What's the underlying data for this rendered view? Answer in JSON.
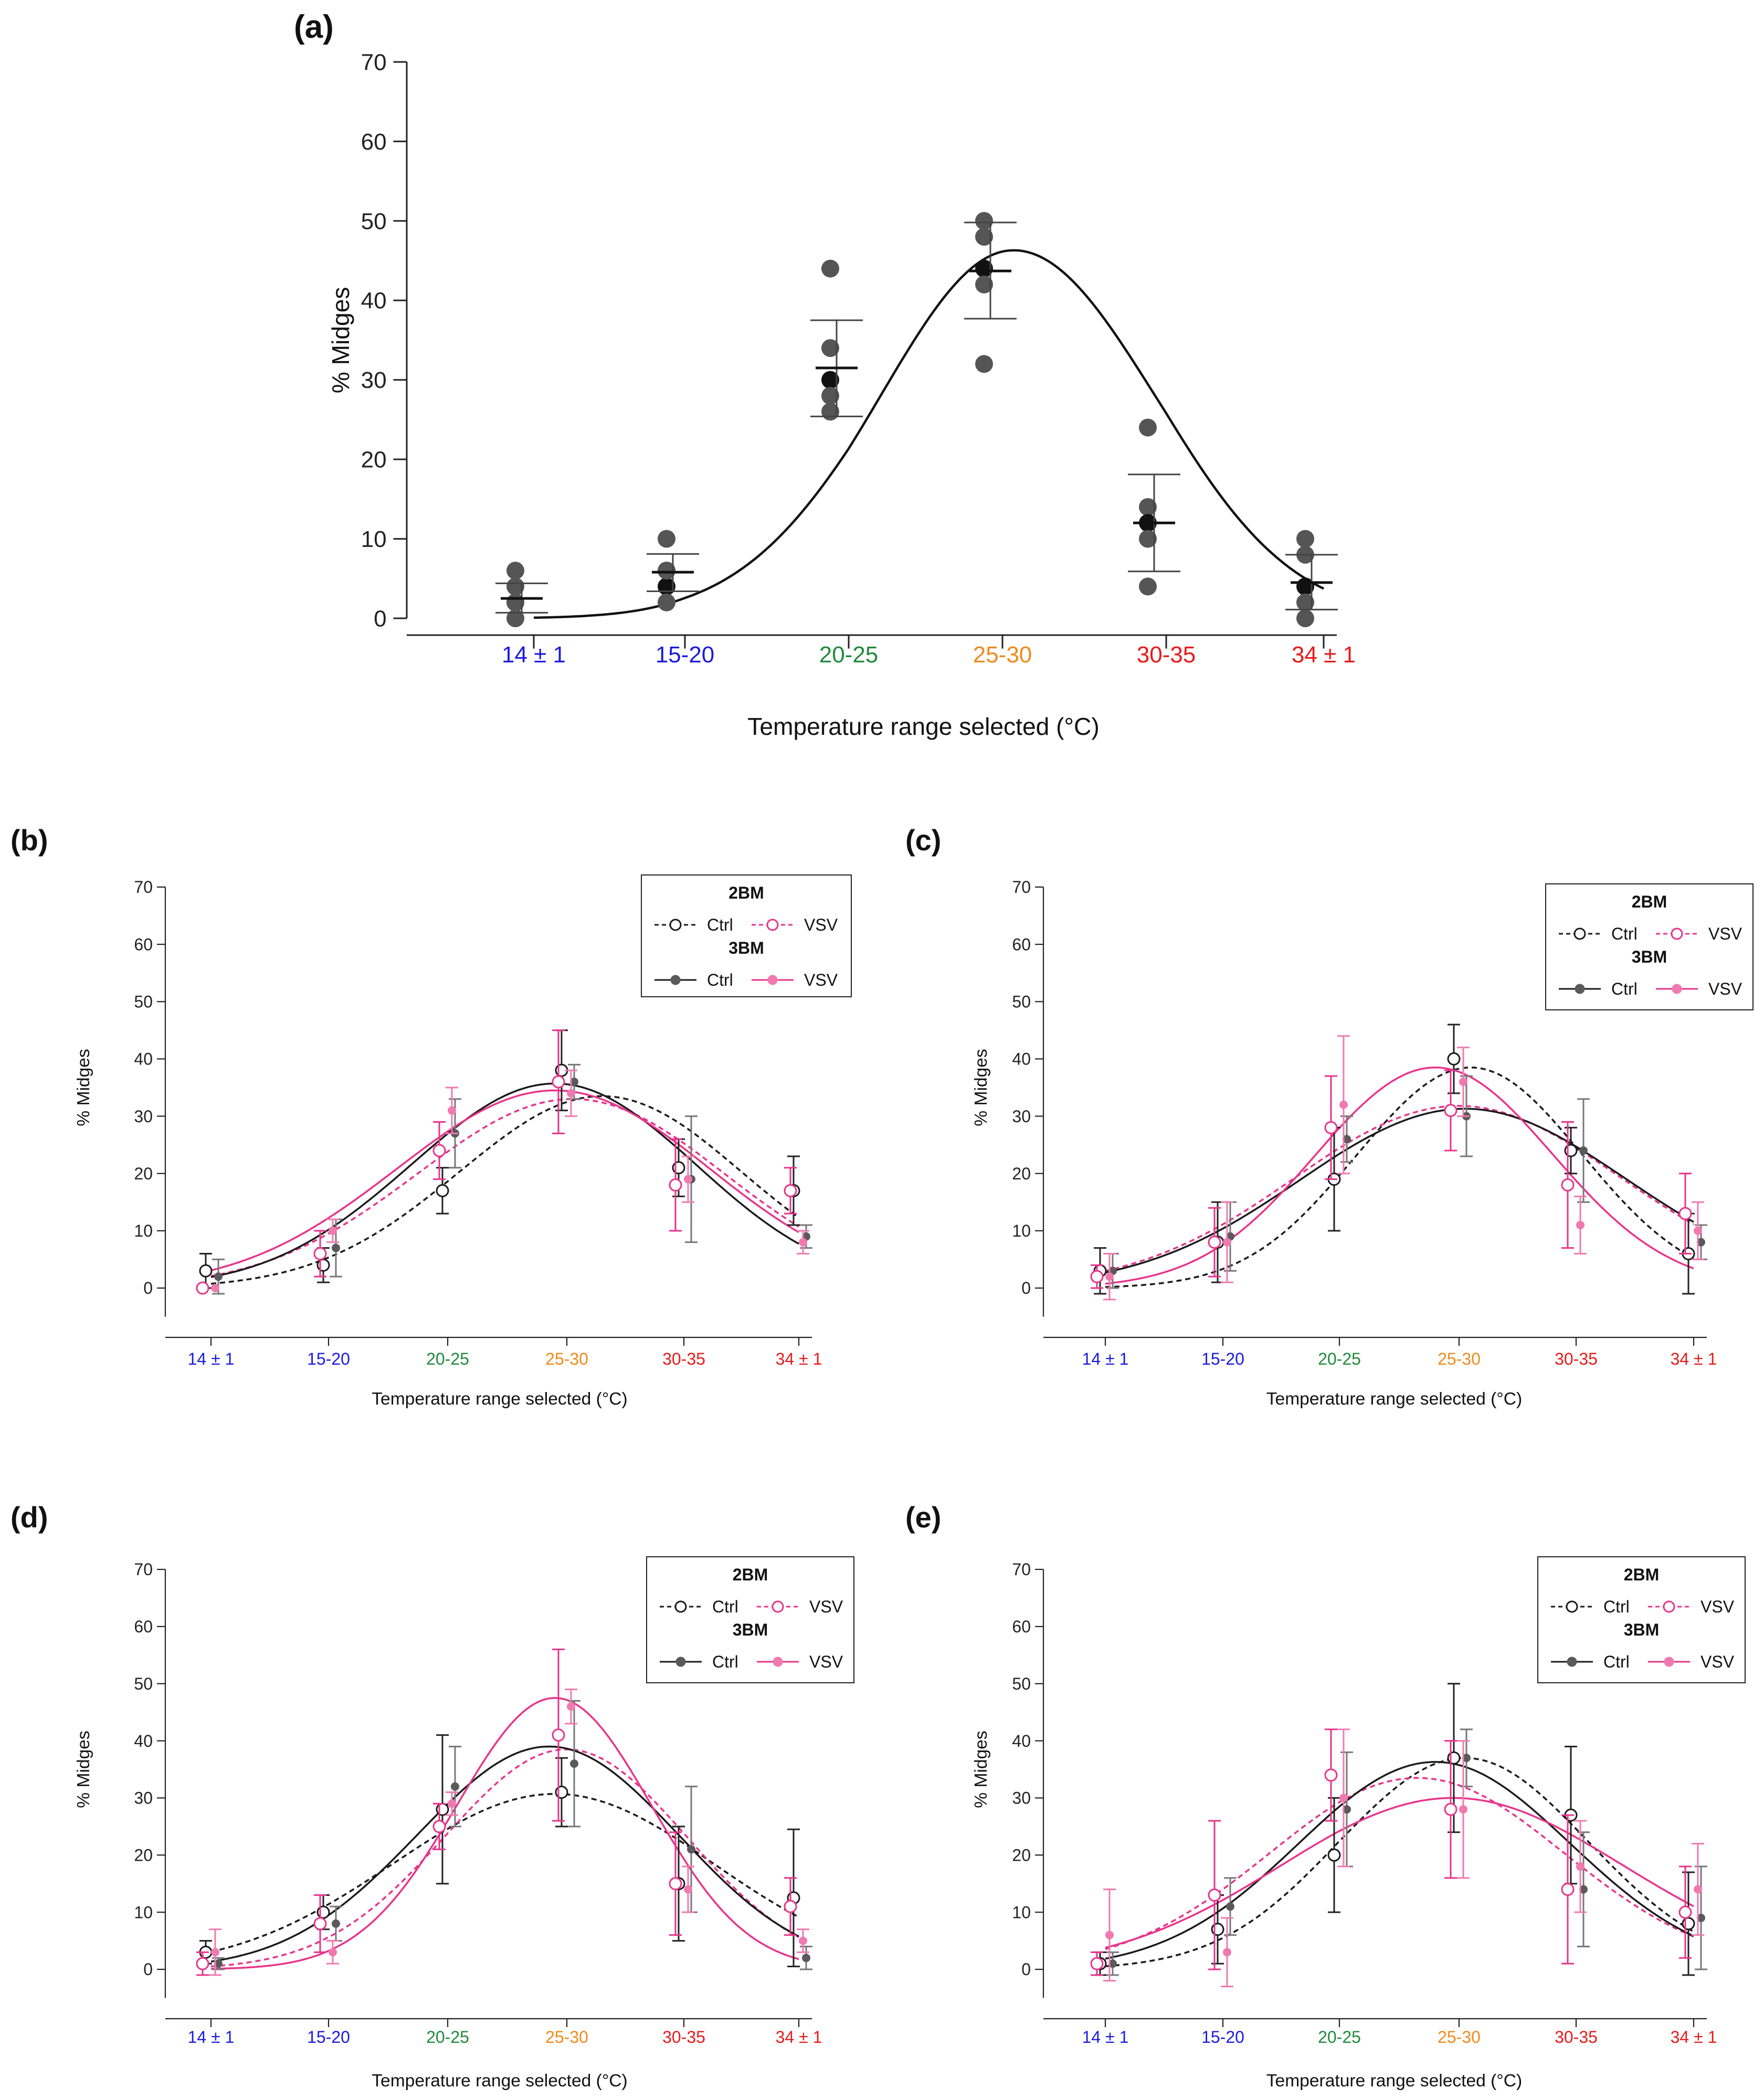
{
  "figure": {
    "panels": [
      "(a)",
      "(b)",
      "(c)",
      "(d)",
      "(e)"
    ]
  },
  "colors": {
    "ctrl": "#1a1a1a",
    "vsv": "#e8338a",
    "vsv_light": "#f07ab0",
    "ctrl_grey": "#5a5a5a",
    "tick_colors": [
      "#1a1adf",
      "#1a1adf",
      "#1f8a3a",
      "#f08a1a",
      "#e81a1a",
      "#e81a1a"
    ]
  },
  "chart_data": [
    {
      "panel": "(a)",
      "type": "scatter",
      "title": "(a)",
      "xlabel": "Temperature range selected (°C)",
      "ylabel": "% Midges",
      "categories": [
        "14 ± 1",
        "15-20",
        "20-25",
        "25-30",
        "30-35",
        "34 ± 1"
      ],
      "ylim": [
        0,
        70
      ],
      "yticks": [
        0,
        10,
        20,
        30,
        40,
        50,
        60,
        70
      ],
      "points": [
        [
          6,
          4,
          2,
          0,
          2
        ],
        [
          10,
          6,
          4,
          2,
          6
        ],
        [
          44,
          34,
          30,
          28,
          26
        ],
        [
          50,
          48,
          44,
          42,
          32
        ],
        [
          24,
          14,
          12,
          10,
          4
        ],
        [
          10,
          8,
          4,
          2,
          0
        ]
      ],
      "mean": [
        2.5,
        5.8,
        31.5,
        43.7,
        12,
        4.5
      ],
      "err_low": [
        0.7,
        3.4,
        25.4,
        37.7,
        5.9,
        1.1
      ],
      "err_high": [
        4.4,
        8.1,
        37.5,
        49.8,
        18.1,
        8
      ],
      "fit": {
        "amplitude": 46.3,
        "center": 3.07,
        "sigma": 0.86
      }
    },
    {
      "panel": "(b)",
      "type": "line",
      "title": "(b)",
      "xlabel": "Temperature range selected (°C)",
      "ylabel": "% Midges",
      "categories": [
        "14 ± 1",
        "15-20",
        "20-25",
        "25-30",
        "30-35",
        "34 ± 1"
      ],
      "ylim": [
        -5,
        70
      ],
      "yticks": [
        0,
        10,
        20,
        30,
        40,
        50,
        60,
        70
      ],
      "legend": {
        "group1": "2BM",
        "group2": "3BM",
        "ctrl": "Ctrl",
        "vsv": "VSV",
        "position": "top-right"
      },
      "series": [
        {
          "name": "2BM Ctrl",
          "values": [
            3,
            4,
            17,
            38,
            21,
            17
          ],
          "err": [
            3,
            3,
            4,
            7,
            5,
            6
          ],
          "fit": {
            "amplitude": 33.5,
            "center": 3.3,
            "sigma": 1.2
          }
        },
        {
          "name": "2BM VSV",
          "values": [
            0,
            6,
            24,
            36,
            18,
            17
          ],
          "err": [
            0,
            4,
            5,
            9,
            8,
            4
          ],
          "fit": {
            "amplitude": 33,
            "center": 3.05,
            "sigma": 1.3
          }
        },
        {
          "name": "3BM Ctrl",
          "values": [
            2,
            7,
            27,
            36,
            19,
            9
          ],
          "err": [
            3,
            5,
            6,
            3,
            11,
            2
          ],
          "fit": {
            "amplitude": 35.7,
            "center": 2.9,
            "sigma": 1.2
          }
        },
        {
          "name": "3BM VSV",
          "values": [
            0,
            10,
            31,
            34,
            19,
            8
          ],
          "err": [
            0,
            2,
            4,
            4,
            4,
            2
          ],
          "fit": {
            "amplitude": 34.5,
            "center": 2.9,
            "sigma": 1.32
          }
        }
      ]
    },
    {
      "panel": "(c)",
      "type": "line",
      "title": "(c)",
      "xlabel": "Temperature range selected (°C)",
      "ylabel": "% Midges",
      "categories": [
        "14 ± 1",
        "15-20",
        "20-25",
        "25-30",
        "30-35",
        "34 ± 1"
      ],
      "ylim": [
        -5,
        70
      ],
      "yticks": [
        0,
        10,
        20,
        30,
        40,
        50,
        60,
        70
      ],
      "legend": {
        "group1": "2BM",
        "group2": "3BM",
        "ctrl": "Ctrl",
        "vsv": "VSV",
        "position": "top-right"
      },
      "series": [
        {
          "name": "2BM Ctrl",
          "values": [
            3,
            8,
            19,
            40,
            24,
            6
          ],
          "err": [
            4,
            7,
            9,
            6,
            4,
            7
          ],
          "fit": {
            "amplitude": 38.5,
            "center": 3.1,
            "sigma": 0.95
          }
        },
        {
          "name": "2BM VSV",
          "values": [
            2,
            8,
            28,
            31,
            18,
            13
          ],
          "err": [
            2,
            6,
            9,
            7,
            11,
            7
          ],
          "fit": {
            "amplitude": 31.8,
            "center": 3.0,
            "sigma": 1.38
          }
        },
        {
          "name": "3BM Ctrl",
          "values": [
            3,
            9,
            26,
            30,
            24,
            8
          ],
          "err": [
            3,
            6,
            4,
            7,
            9,
            3
          ],
          "fit": {
            "amplitude": 31.3,
            "center": 3.05,
            "sigma": 1.38
          }
        },
        {
          "name": "3BM VSV",
          "values": [
            2,
            8,
            32,
            36,
            11,
            10
          ],
          "err": [
            4,
            7,
            12,
            6,
            5,
            5
          ],
          "fit": {
            "amplitude": 38.5,
            "center": 2.8,
            "sigma": 1.0
          }
        }
      ]
    },
    {
      "panel": "(d)",
      "type": "line",
      "title": "(d)",
      "xlabel": "Temperature range selected (°C)",
      "ylabel": "% Midges",
      "categories": [
        "14 ± 1",
        "15-20",
        "20-25",
        "25-30",
        "30-35",
        "34 ± 1"
      ],
      "ylim": [
        -5,
        70
      ],
      "yticks": [
        0,
        10,
        20,
        30,
        40,
        50,
        60,
        70
      ],
      "legend": {
        "group1": "2BM",
        "group2": "3BM",
        "ctrl": "Ctrl",
        "vsv": "VSV",
        "position": "top-right"
      },
      "series": [
        {
          "name": "2BM Ctrl",
          "values": [
            3,
            10,
            28,
            31,
            15,
            12.5
          ],
          "err": [
            2,
            3,
            13,
            6,
            10,
            12
          ],
          "fit": {
            "amplitude": 30.7,
            "center": 2.9,
            "sigma": 1.35
          }
        },
        {
          "name": "2BM VSV",
          "values": [
            1,
            8,
            25,
            41,
            15,
            11
          ],
          "err": [
            2,
            5,
            4,
            15,
            9,
            5
          ],
          "fit": {
            "amplitude": 38.5,
            "center": 3.0,
            "sigma": 1.02
          }
        },
        {
          "name": "3BM Ctrl",
          "values": [
            1,
            8,
            32,
            36,
            21,
            2
          ],
          "err": [
            1,
            3,
            7,
            11,
            11,
            2
          ],
          "fit": {
            "amplitude": 39,
            "center": 2.85,
            "sigma": 1.1
          }
        },
        {
          "name": "3BM VSV",
          "values": [
            3,
            3,
            29,
            46,
            14,
            5
          ],
          "err": [
            4,
            2,
            2,
            3,
            4,
            2
          ],
          "fit": {
            "amplitude": 47.5,
            "center": 2.9,
            "sigma": 0.82
          }
        }
      ]
    },
    {
      "panel": "(e)",
      "type": "line",
      "title": "(e)",
      "xlabel": "Temperature range selected (°C)",
      "ylabel": "% Midges",
      "categories": [
        "14 ± 1",
        "15-20",
        "20-25",
        "25-30",
        "30-35",
        "34 ± 1"
      ],
      "ylim": [
        -5,
        70
      ],
      "yticks": [
        0,
        10,
        20,
        30,
        40,
        50,
        60,
        70
      ],
      "legend": {
        "group1": "2BM",
        "group2": "3BM",
        "ctrl": "Ctrl",
        "vsv": "VSV",
        "position": "top-right"
      },
      "series": [
        {
          "name": "2BM Ctrl",
          "values": [
            1,
            7,
            20,
            37,
            27,
            8
          ],
          "err": [
            2,
            6,
            10,
            13,
            12,
            9
          ],
          "fit": {
            "amplitude": 37,
            "center": 3.05,
            "sigma": 1.05
          }
        },
        {
          "name": "2BM VSV",
          "values": [
            1,
            13,
            34,
            28,
            14,
            10
          ],
          "err": [
            2,
            13,
            8,
            12,
            13,
            8
          ],
          "fit": {
            "amplitude": 33.5,
            "center": 2.65,
            "sigma": 1.25
          }
        },
        {
          "name": "3BM Ctrl",
          "values": [
            1,
            11,
            28,
            37,
            14,
            9
          ],
          "err": [
            2,
            5,
            10,
            5,
            10,
            9
          ],
          "fit": {
            "amplitude": 36.3,
            "center": 2.8,
            "sigma": 1.15
          }
        },
        {
          "name": "3BM VSV",
          "values": [
            6,
            3,
            30,
            28,
            18,
            14
          ],
          "err": [
            8,
            6,
            12,
            12,
            8,
            8
          ],
          "fit": {
            "amplitude": 30,
            "center": 2.95,
            "sigma": 1.45
          }
        }
      ]
    }
  ]
}
